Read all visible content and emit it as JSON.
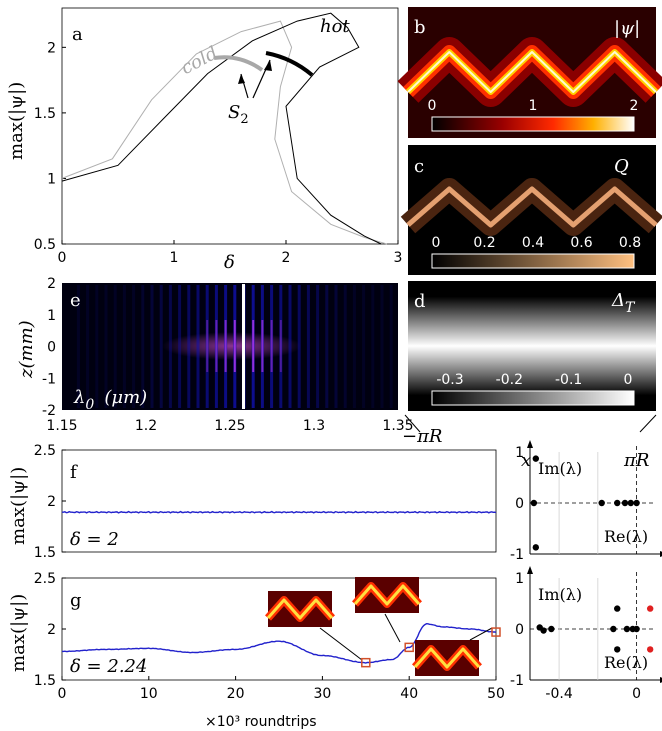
{
  "figure": {
    "panel_a": {
      "letter": "a",
      "ylabel": "max(|ψ|)",
      "xlabel": "δ",
      "xticks": [
        "0",
        "1",
        "2",
        "3"
      ],
      "yticks": [
        "0.5",
        "1",
        "1.5",
        "2"
      ],
      "label_cold": "cold",
      "label_hot": "hot",
      "label_S2": "S",
      "label_S2_sub": "2",
      "colors": {
        "cold": "#b0b0b0",
        "hot": "#000000"
      }
    },
    "panel_b": {
      "letter": "b",
      "symbol": "|ψ|",
      "cticks": [
        "0",
        "1",
        "2"
      ]
    },
    "panel_c": {
      "letter": "c",
      "symbol": "Q",
      "cticks": [
        "0",
        "0.2",
        "0.4",
        "0.6",
        "0.8"
      ]
    },
    "panel_d": {
      "letter": "d",
      "symbol": "Δ",
      "symbol_sub": "T",
      "cticks": [
        "-0.3",
        "-0.2",
        "-0.1",
        "0"
      ]
    },
    "panel_e": {
      "letter": "e",
      "ylabel": "z(mm)",
      "xlabel": "λ",
      "xlabel_sub": "0",
      "xlabel_unit": "(μm)",
      "xticks": [
        "1.15",
        "1.2",
        "1.25",
        "1.3",
        "1.35"
      ],
      "yticks": [
        "2",
        "1",
        "0",
        "-1",
        "-2"
      ]
    },
    "axis_marks": {
      "left_piR": "−πR",
      "x": "x",
      "right_piR": "πR"
    },
    "panel_f": {
      "letter": "f",
      "ylabel": "max(|ψ|)",
      "annotation": "δ = 2",
      "yticks": [
        "2.5",
        "2",
        "1.5"
      ],
      "line_color": "#2222cc"
    },
    "panel_g": {
      "letter": "g",
      "ylabel": "max(|ψ|)",
      "annotation": "δ = 2.24",
      "yticks": [
        "2.5",
        "2",
        "1.5"
      ],
      "xticks": [
        "0",
        "10",
        "20",
        "30",
        "40",
        "50"
      ],
      "xlabel": "×10³ roundtrips",
      "marker_color": "#d2502a"
    },
    "stab_f": {
      "ylabel": "Im(λ)",
      "xlabel": "Re(λ)",
      "yticks": [
        "1",
        "0",
        "-1"
      ]
    },
    "stab_g": {
      "ylabel": "Im(λ)",
      "xlabel": "Re(λ)",
      "yticks": [
        "1",
        "0",
        "-1"
      ],
      "xticks": [
        "-0.4",
        "0"
      ],
      "unstable_color": "#e02020"
    }
  },
  "chart_data": [
    {
      "id": "a",
      "type": "line",
      "xlabel": "δ",
      "ylabel": "max(|ψ|)",
      "xlim": [
        0,
        3
      ],
      "ylim": [
        0.5,
        2.3
      ],
      "series": [
        {
          "name": "cold",
          "x": [
            0,
            0.45,
            0.8,
            1.2,
            1.6,
            1.95,
            2.05,
            1.95,
            1.9,
            2.05,
            2.4,
            2.7,
            2.9
          ],
          "y": [
            1.0,
            1.15,
            1.6,
            1.95,
            2.12,
            2.2,
            2.0,
            1.7,
            1.3,
            0.9,
            0.65,
            0.55,
            0.5
          ]
        },
        {
          "name": "hot",
          "x": [
            0,
            0.5,
            0.9,
            1.3,
            1.7,
            2.1,
            2.4,
            2.55,
            2.65,
            2.3,
            2.0,
            2.1,
            2.4,
            2.7,
            2.85
          ],
          "y": [
            0.98,
            1.1,
            1.45,
            1.8,
            2.05,
            2.2,
            2.26,
            2.15,
            2.0,
            1.85,
            1.55,
            1.0,
            0.72,
            0.56,
            0.5
          ]
        }
      ]
    },
    {
      "id": "f",
      "type": "line",
      "ylabel": "max(|ψ|)",
      "xlim": [
        0,
        50
      ],
      "ylim": [
        1.5,
        2.5
      ],
      "series": [
        {
          "name": "",
          "x": [
            0,
            10,
            20,
            30,
            40,
            50
          ],
          "y": [
            1.89,
            1.89,
            1.89,
            1.89,
            1.89,
            1.89
          ]
        }
      ]
    },
    {
      "id": "g",
      "type": "line",
      "ylabel": "max(|ψ|)",
      "xlabel": "×10³ roundtrips",
      "xlim": [
        0,
        50
      ],
      "ylim": [
        1.5,
        2.5
      ],
      "series": [
        {
          "name": "",
          "x": [
            0,
            5,
            10,
            15,
            20,
            25,
            30,
            35,
            38,
            40,
            42,
            44,
            47,
            50
          ],
          "y": [
            1.78,
            1.8,
            1.81,
            1.77,
            1.8,
            1.88,
            1.74,
            1.67,
            1.7,
            1.82,
            2.05,
            2.02,
            2.0,
            1.97
          ]
        }
      ],
      "markers": [
        {
          "x": 35,
          "y": 1.67
        },
        {
          "x": 40,
          "y": 1.82
        },
        {
          "x": 50,
          "y": 1.97
        }
      ]
    },
    {
      "id": "stab_f",
      "type": "scatter",
      "xlabel": "Re(λ)",
      "ylabel": "Im(λ)",
      "xlim": [
        -0.55,
        0.1
      ],
      "ylim": [
        -1,
        1
      ],
      "points": [
        {
          "x": -0.52,
          "y": 0.87
        },
        {
          "x": -0.53,
          "y": 0
        },
        {
          "x": -0.52,
          "y": -0.87
        },
        {
          "x": -0.18,
          "y": 0
        },
        {
          "x": -0.1,
          "y": 0
        },
        {
          "x": -0.06,
          "y": 0
        },
        {
          "x": -0.03,
          "y": 0
        },
        {
          "x": 0,
          "y": 0
        }
      ]
    },
    {
      "id": "stab_g",
      "type": "scatter",
      "xlabel": "Re(λ)",
      "ylabel": "Im(λ)",
      "xlim": [
        -0.55,
        0.1
      ],
      "ylim": [
        -1,
        1
      ],
      "points": [
        {
          "x": -0.5,
          "y": 0.03
        },
        {
          "x": -0.48,
          "y": -0.03
        },
        {
          "x": -0.44,
          "y": 0
        },
        {
          "x": -0.12,
          "y": 0
        },
        {
          "x": -0.1,
          "y": 0.4
        },
        {
          "x": -0.1,
          "y": -0.4
        },
        {
          "x": -0.05,
          "y": 0
        },
        {
          "x": -0.02,
          "y": 0
        },
        {
          "x": 0,
          "y": 0
        }
      ],
      "unstable": [
        {
          "x": 0.07,
          "y": 0.4
        },
        {
          "x": 0.07,
          "y": -0.4
        }
      ]
    }
  ]
}
